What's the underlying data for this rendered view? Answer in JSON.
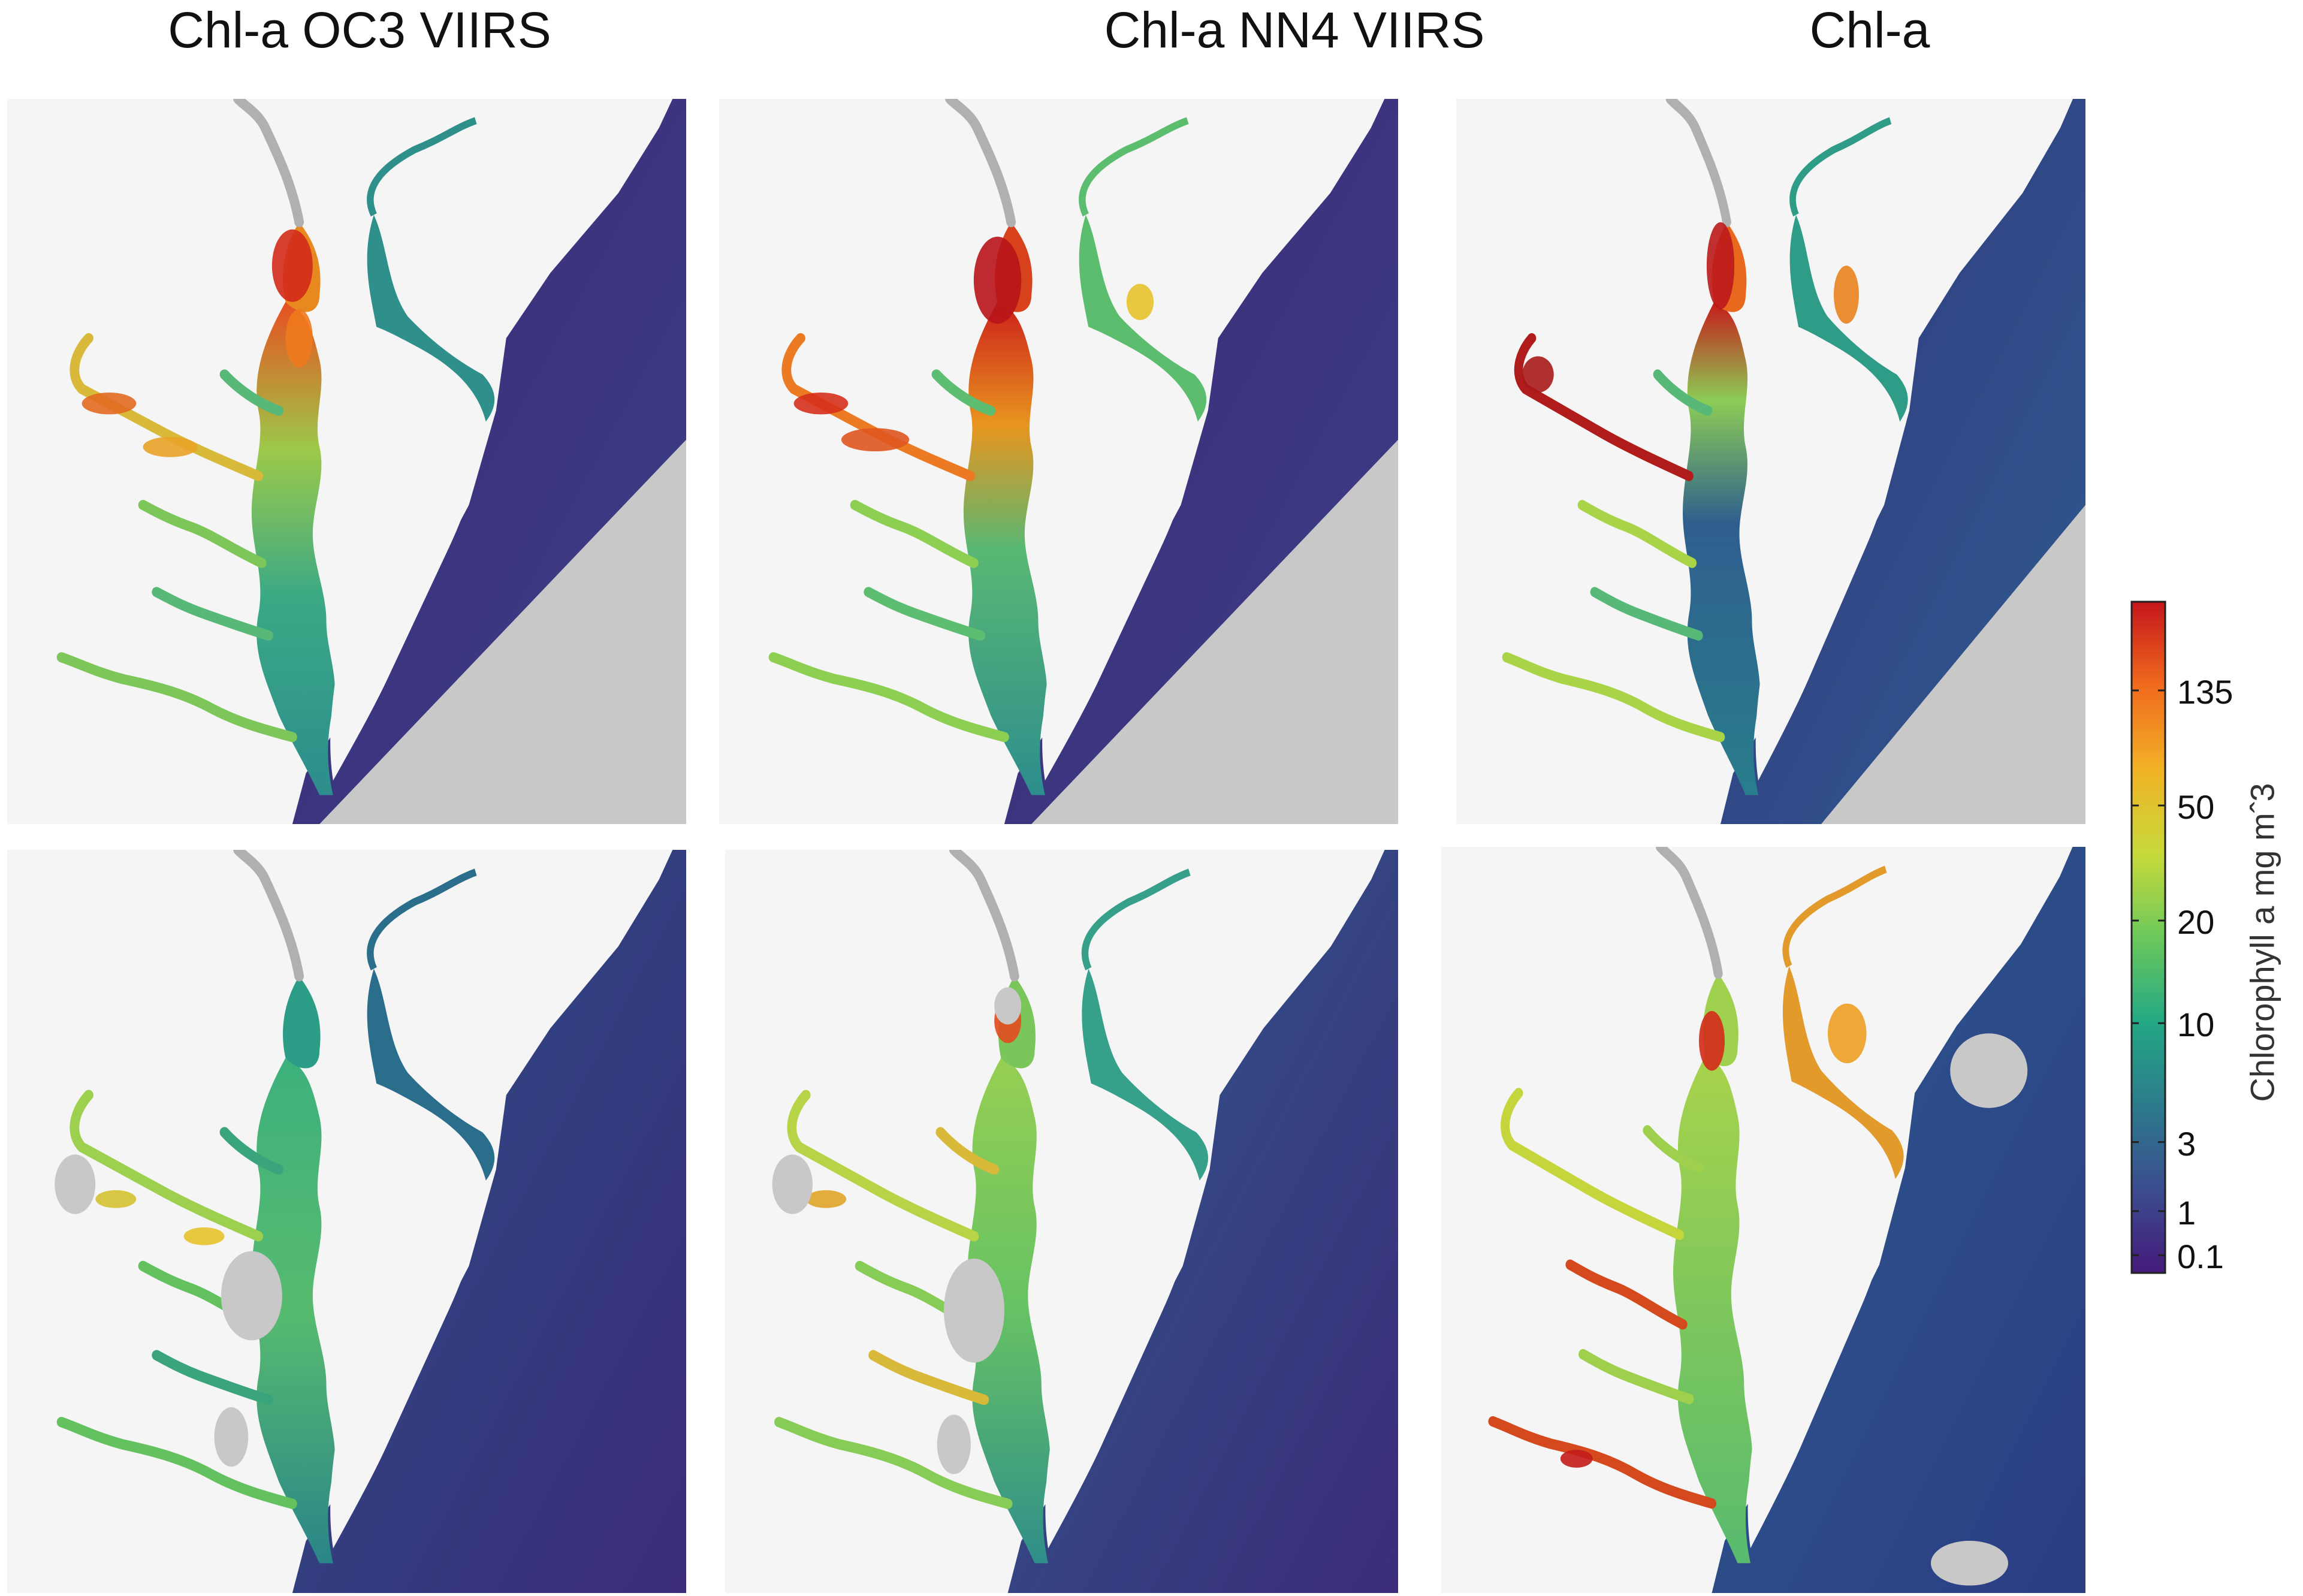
{
  "columns": [
    {
      "title": "Chl-a OC3 VIIRS"
    },
    {
      "title": "Chl-a NN4 VIIRS"
    },
    {
      "title": "Chl-a"
    }
  ],
  "colorbar": {
    "label": "Chlorophyll a mg mˆ3",
    "ticks": [
      {
        "value": 135,
        "text": "135"
      },
      {
        "value": 50,
        "text": "50"
      },
      {
        "value": 20,
        "text": "20"
      },
      {
        "value": 10,
        "text": "10"
      },
      {
        "value": 3,
        "text": "3"
      },
      {
        "value": 1,
        "text": "1"
      },
      {
        "value": 0.1,
        "text": "0.1"
      }
    ],
    "colors": [
      "#441a7a",
      "#3b4d8f",
      "#2c7b8c",
      "#23a884",
      "#6cc95b",
      "#c8d93a",
      "#f2b227",
      "#f06a1d",
      "#c4161c"
    ]
  },
  "palette": {
    "land": "#f5f5f5",
    "nodata": "#c8c8c8",
    "ocean_deep": "#3b2f78",
    "ocean_mid": "#34528e"
  },
  "panels": [
    {
      "row": 1,
      "column": 1,
      "id": "oc3-top"
    },
    {
      "row": 1,
      "column": 2,
      "id": "nn4-top"
    },
    {
      "row": 1,
      "column": 3,
      "id": "insitu-top"
    },
    {
      "row": 2,
      "column": 1,
      "id": "oc3-bottom"
    },
    {
      "row": 2,
      "column": 2,
      "id": "nn4-bottom"
    },
    {
      "row": 2,
      "column": 3,
      "id": "insitu-bottom"
    }
  ]
}
